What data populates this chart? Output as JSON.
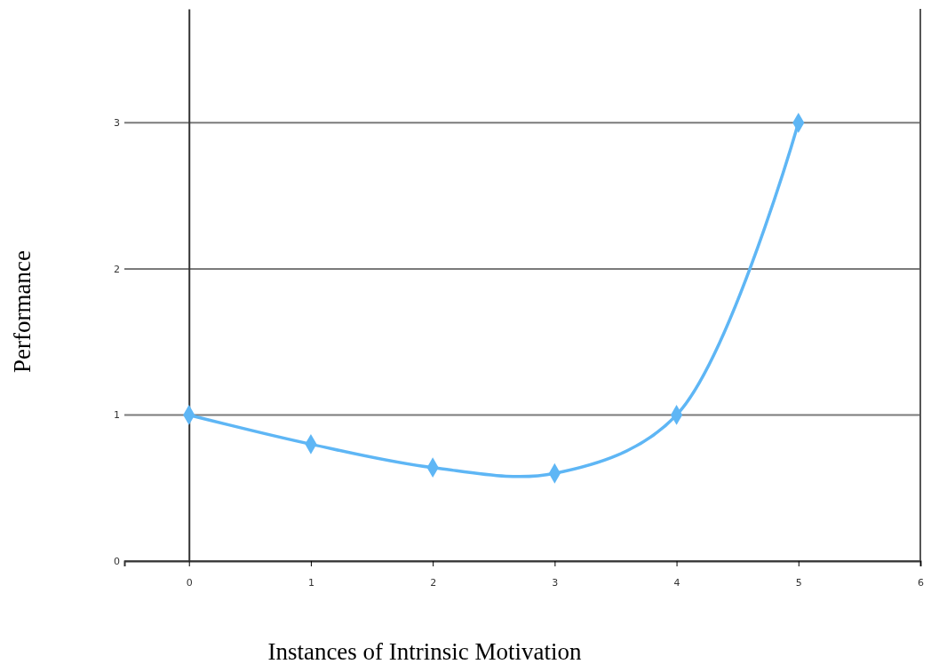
{
  "chart_data": {
    "type": "line",
    "xlabel": "Instances of Intrinsic Motivation",
    "ylabel": "Performance",
    "x": [
      0,
      1,
      2,
      3,
      4,
      5
    ],
    "series": [
      {
        "color": "#5eb6f5",
        "values": [
          1,
          0.8,
          0.64,
          0.6,
          1,
          3
        ]
      }
    ],
    "xlim": [
      -0.53,
      6
    ],
    "ylim": [
      0,
      3.78
    ],
    "xticks": [
      0,
      1,
      2,
      3,
      4,
      5,
      6
    ],
    "yticks": [
      0,
      1,
      2,
      3
    ],
    "grid": "y",
    "marker": "diamond",
    "line_style": "solid"
  }
}
